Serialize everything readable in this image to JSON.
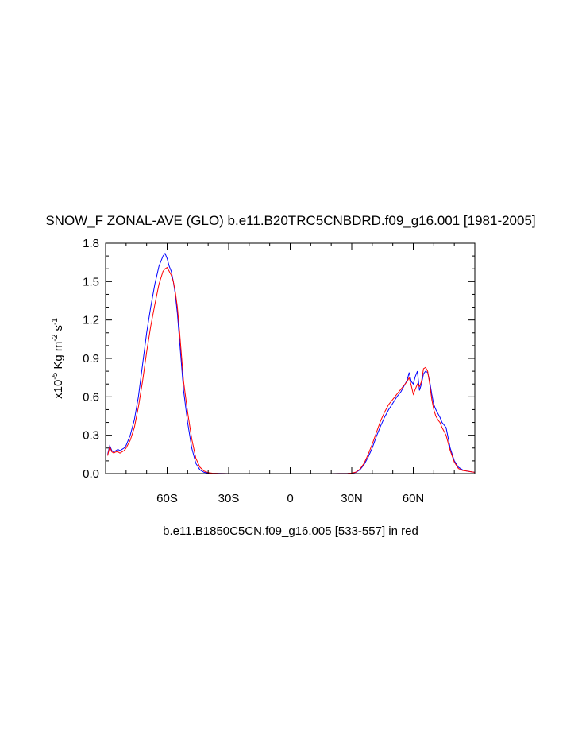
{
  "chart_data": {
    "type": "line",
    "title": "SNOW_F ZONAL-AVE (GLO) b.e11.B20TRC5CNBDRD.f09_g16.001 [1981-2005]",
    "xlabel": "b.e11.B1850C5CN.f09_g16.005 [533-557] in red",
    "ylabel": {
      "prefix": "x10",
      "exp1": "-5",
      "mid": " Kg m",
      "exp2": "-2",
      "s": " s",
      "exp3": "-1"
    },
    "xlim": [
      -90,
      90
    ],
    "ylim": [
      0,
      1.8
    ],
    "x_ticks": [
      {
        "value": -60,
        "label": "60S"
      },
      {
        "value": -30,
        "label": "30S"
      },
      {
        "value": 0,
        "label": "0"
      },
      {
        "value": 30,
        "label": "30N"
      },
      {
        "value": 60,
        "label": "60N"
      }
    ],
    "y_ticks": [
      {
        "value": 0.0,
        "label": "0.0"
      },
      {
        "value": 0.3,
        "label": "0.3"
      },
      {
        "value": 0.6,
        "label": "0.6"
      },
      {
        "value": 0.9,
        "label": "0.9"
      },
      {
        "value": 1.2,
        "label": "1.2"
      },
      {
        "value": 1.5,
        "label": "1.5"
      },
      {
        "value": 1.8,
        "label": "1.8"
      }
    ],
    "series": [
      {
        "color": "#0000ff",
        "x": [
          -89,
          -88,
          -87,
          -86,
          -85,
          -84,
          -83,
          -82,
          -81,
          -80,
          -78,
          -76,
          -74,
          -72,
          -70,
          -68,
          -66,
          -64,
          -62,
          -61,
          -60,
          -59,
          -58,
          -57,
          -56,
          -55,
          -54,
          -53,
          -52,
          -50,
          -48,
          -46,
          -44,
          -42,
          -40,
          -38,
          -35,
          -30,
          -20,
          -10,
          0,
          10,
          20,
          28,
          30,
          32,
          34,
          36,
          38,
          40,
          42,
          44,
          46,
          48,
          50,
          52,
          54,
          56,
          57,
          58,
          59,
          60,
          61,
          62,
          63,
          64,
          65,
          66,
          67,
          68,
          69,
          70,
          71,
          72,
          73,
          74,
          75,
          76,
          78,
          80,
          82,
          84,
          86,
          88,
          90
        ],
        "y": [
          0.15,
          0.22,
          0.18,
          0.17,
          0.18,
          0.19,
          0.18,
          0.19,
          0.2,
          0.22,
          0.3,
          0.42,
          0.6,
          0.85,
          1.1,
          1.3,
          1.48,
          1.62,
          1.7,
          1.72,
          1.68,
          1.62,
          1.58,
          1.5,
          1.4,
          1.25,
          1.05,
          0.85,
          0.65,
          0.4,
          0.2,
          0.08,
          0.03,
          0.01,
          0.005,
          0.002,
          0.001,
          0.0,
          0.0,
          0.0,
          0.0,
          0.0,
          0.0,
          0.001,
          0.003,
          0.01,
          0.03,
          0.07,
          0.13,
          0.2,
          0.29,
          0.37,
          0.44,
          0.5,
          0.55,
          0.6,
          0.64,
          0.7,
          0.73,
          0.79,
          0.72,
          0.7,
          0.76,
          0.8,
          0.65,
          0.7,
          0.78,
          0.8,
          0.79,
          0.72,
          0.62,
          0.54,
          0.5,
          0.47,
          0.44,
          0.4,
          0.38,
          0.36,
          0.2,
          0.1,
          0.05,
          0.03,
          0.02,
          0.015,
          0.01
        ]
      },
      {
        "color": "#ff0000",
        "x": [
          -89,
          -88,
          -87,
          -86,
          -85,
          -84,
          -83,
          -82,
          -81,
          -80,
          -78,
          -76,
          -74,
          -72,
          -70,
          -68,
          -66,
          -64,
          -62,
          -61,
          -60,
          -59,
          -58,
          -57,
          -56,
          -55,
          -54,
          -53,
          -52,
          -50,
          -48,
          -46,
          -44,
          -42,
          -40,
          -38,
          -35,
          -30,
          -20,
          -10,
          0,
          10,
          20,
          28,
          30,
          32,
          34,
          36,
          38,
          40,
          42,
          44,
          46,
          48,
          50,
          52,
          54,
          56,
          57,
          58,
          59,
          60,
          61,
          62,
          63,
          64,
          65,
          66,
          67,
          68,
          69,
          70,
          71,
          72,
          73,
          74,
          75,
          76,
          78,
          80,
          82,
          84,
          86,
          88,
          90
        ],
        "y": [
          0.14,
          0.21,
          0.17,
          0.16,
          0.17,
          0.17,
          0.16,
          0.17,
          0.18,
          0.2,
          0.26,
          0.36,
          0.52,
          0.72,
          0.95,
          1.15,
          1.32,
          1.48,
          1.58,
          1.6,
          1.61,
          1.58,
          1.55,
          1.5,
          1.42,
          1.3,
          1.12,
          0.92,
          0.72,
          0.48,
          0.27,
          0.12,
          0.05,
          0.02,
          0.008,
          0.003,
          0.001,
          0.0,
          0.0,
          0.0,
          0.0,
          0.0,
          0.0,
          0.001,
          0.004,
          0.012,
          0.035,
          0.08,
          0.15,
          0.23,
          0.32,
          0.41,
          0.48,
          0.54,
          0.58,
          0.62,
          0.66,
          0.7,
          0.72,
          0.75,
          0.69,
          0.62,
          0.66,
          0.7,
          0.68,
          0.72,
          0.82,
          0.83,
          0.8,
          0.7,
          0.58,
          0.5,
          0.45,
          0.42,
          0.4,
          0.36,
          0.33,
          0.3,
          0.18,
          0.09,
          0.04,
          0.025,
          0.02,
          0.015,
          0.01
        ]
      }
    ]
  }
}
